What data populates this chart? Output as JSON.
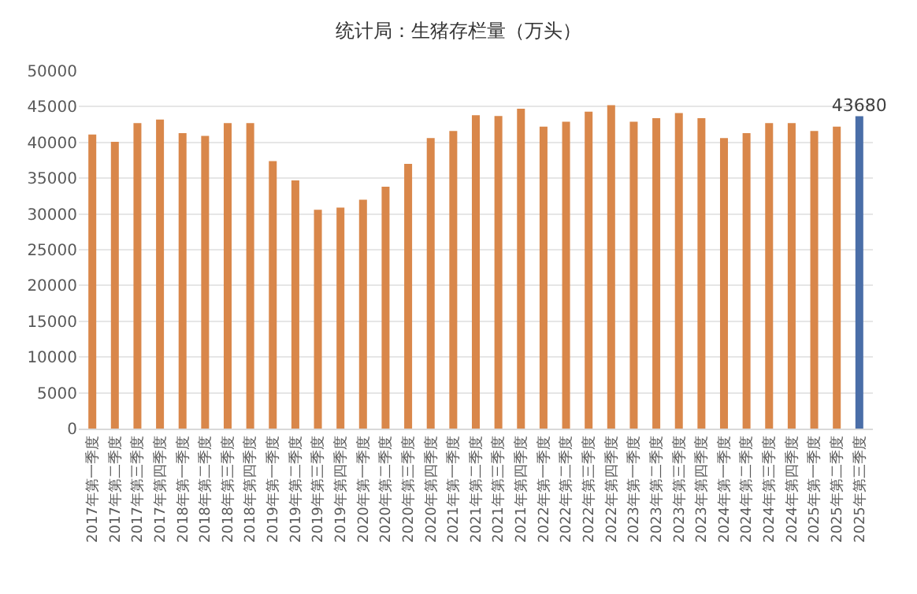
{
  "chart_data": {
    "type": "bar",
    "title": "统计局：生猪存栏量（万头）",
    "categories": [
      "2017年第一季度",
      "2017年第二季度",
      "2017年第三季度",
      "2017年第四季度",
      "2018年第一季度",
      "2018年第二季度",
      "2018年第三季度",
      "2018年第四季度",
      "2019年第一季度",
      "2019年第二季度",
      "2019年第三季度",
      "2019年第四季度",
      "2020年第一季度",
      "2020年第二季度",
      "2020年第三季度",
      "2020年第四季度",
      "2021年第一季度",
      "2021年第二季度",
      "2021年第三季度",
      "2021年第四季度",
      "2022年第一季度",
      "2022年第二季度",
      "2022年第三季度",
      "2022年第四季度",
      "2023年第一季度",
      "2023年第二季度",
      "2023年第三季度",
      "2023年第四季度",
      "2024年第一季度",
      "2024年第二季度",
      "2024年第三季度",
      "2024年第四季度",
      "2025年第一季度",
      "2025年第二季度",
      "2025年第三季度"
    ],
    "values": [
      41100,
      40100,
      42700,
      43200,
      41300,
      40900,
      42700,
      42700,
      37400,
      34700,
      30600,
      30900,
      32000,
      33800,
      37000,
      40600,
      41600,
      43800,
      43700,
      44700,
      42200,
      42900,
      44300,
      45200,
      42900,
      43400,
      44100,
      43400,
      40600,
      41300,
      42700,
      42700,
      41600,
      42200,
      43680
    ],
    "colors": [
      "#d9874a",
      "#d9874a",
      "#d9874a",
      "#d9874a",
      "#d9874a",
      "#d9874a",
      "#d9874a",
      "#d9874a",
      "#d9874a",
      "#d9874a",
      "#d9874a",
      "#d9874a",
      "#d9874a",
      "#d9874a",
      "#d9874a",
      "#d9874a",
      "#d9874a",
      "#d9874a",
      "#d9874a",
      "#d9874a",
      "#d9874a",
      "#d9874a",
      "#d9874a",
      "#d9874a",
      "#d9874a",
      "#d9874a",
      "#d9874a",
      "#d9874a",
      "#d9874a",
      "#d9874a",
      "#d9874a",
      "#d9874a",
      "#d9874a",
      "#d9874a",
      "#4a6ea8"
    ],
    "value_labels": [
      null,
      null,
      null,
      null,
      null,
      null,
      null,
      null,
      null,
      null,
      null,
      null,
      null,
      null,
      null,
      null,
      null,
      null,
      null,
      null,
      null,
      null,
      null,
      null,
      null,
      null,
      null,
      null,
      null,
      null,
      null,
      null,
      null,
      null,
      "43680"
    ],
    "ylim": [
      0,
      50000
    ],
    "yticks": [
      0,
      5000,
      10000,
      15000,
      20000,
      25000,
      30000,
      35000,
      40000,
      45000,
      50000
    ],
    "grid": "y",
    "legend": false
  }
}
